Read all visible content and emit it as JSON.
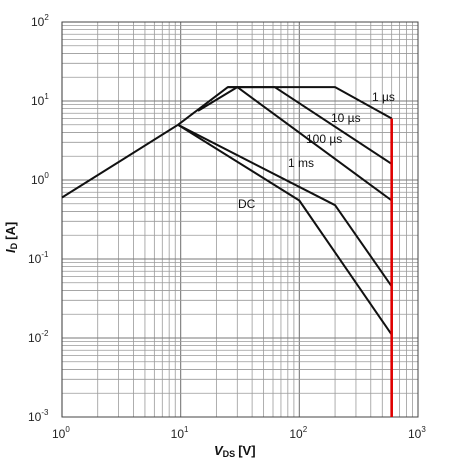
{
  "chart_data": {
    "type": "line",
    "title": "",
    "xlabel": {
      "symbol": "V",
      "subscript": "DS",
      "unit": "[V]"
    },
    "ylabel": {
      "symbol": "I",
      "subscript": "D",
      "unit": "[A]"
    },
    "xscale": "log",
    "yscale": "log",
    "xlim": [
      1,
      1000
    ],
    "ylim": [
      0.001,
      100
    ],
    "grid": true,
    "x_ticks": [
      {
        "base": "10",
        "exp": "0"
      },
      {
        "base": "10",
        "exp": "1"
      },
      {
        "base": "10",
        "exp": "2"
      },
      {
        "base": "10",
        "exp": "3"
      }
    ],
    "y_ticks": [
      {
        "base": "10",
        "exp": "-3"
      },
      {
        "base": "10",
        "exp": "-2"
      },
      {
        "base": "10",
        "exp": "-1"
      },
      {
        "base": "10",
        "exp": "0"
      },
      {
        "base": "10",
        "exp": "1"
      },
      {
        "base": "10",
        "exp": "2"
      }
    ],
    "series": [
      {
        "name": "1 µs",
        "points": [
          [
            1,
            0.6
          ],
          [
            9.5,
            5.0
          ],
          [
            25,
            15
          ],
          [
            200,
            15
          ],
          [
            600,
            6.0
          ]
        ]
      },
      {
        "name": "10 µs",
        "points": [
          [
            25,
            15
          ],
          [
            62,
            15
          ],
          [
            600,
            1.6
          ]
        ]
      },
      {
        "name": "100 µs",
        "points": [
          [
            14,
            7.5
          ],
          [
            30,
            15
          ],
          [
            600,
            0.55
          ]
        ]
      },
      {
        "name": "1 ms",
        "points": [
          [
            9.5,
            5.0
          ],
          [
            200,
            0.48
          ],
          [
            600,
            0.045
          ]
        ]
      },
      {
        "name": "DC",
        "points": [
          [
            9.5,
            5.0
          ],
          [
            100,
            0.55
          ],
          [
            600,
            0.011
          ]
        ]
      }
    ],
    "limit_line": {
      "x": 600,
      "y_range": [
        0.001,
        6.0
      ],
      "color": "#e00000"
    },
    "line_color": "#111111",
    "grid_major_color": "#7a7a7a",
    "grid_minor_color": "#9a9a9a"
  }
}
